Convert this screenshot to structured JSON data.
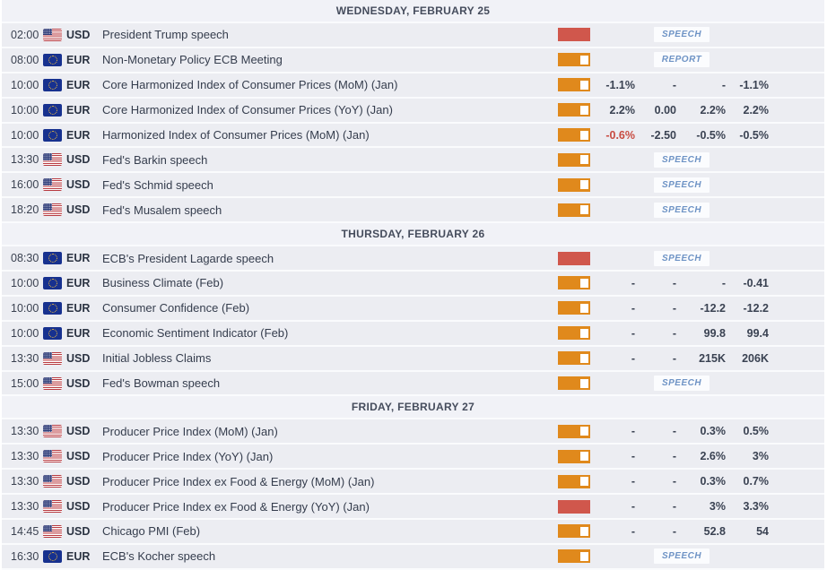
{
  "theme": {
    "accent_orange": "#e0891c",
    "impact_high_red": "#d0574c",
    "badge_text_blue": "#6e93c5",
    "negative_value_red": "#c84b41",
    "row_background": "#ecedf2",
    "header_background": "#f1f2f7"
  },
  "calendar": {
    "days": [
      {
        "label": "WEDNESDAY, FEBRUARY 25",
        "events": [
          {
            "time": "02:00",
            "currency": "USD",
            "flag": "us-flag-icon",
            "name": "President Trump speech",
            "impact": "high",
            "badge": "SPEECH"
          },
          {
            "time": "08:00",
            "currency": "EUR",
            "flag": "eu-flag-icon",
            "name": "Non-Monetary Policy ECB Meeting",
            "impact": "medium",
            "badge": "REPORT"
          },
          {
            "time": "10:00",
            "currency": "EUR",
            "flag": "eu-flag-icon",
            "name": "Core Harmonized Index of Consumer Prices (MoM) (Jan)",
            "impact": "medium",
            "values": [
              "-1.1%",
              "-",
              "-",
              "-1.1%"
            ]
          },
          {
            "time": "10:00",
            "currency": "EUR",
            "flag": "eu-flag-icon",
            "name": "Core Harmonized Index of Consumer Prices (YoY) (Jan)",
            "impact": "medium",
            "values": [
              "2.2%",
              "0.00",
              "2.2%",
              "2.2%"
            ]
          },
          {
            "time": "10:00",
            "currency": "EUR",
            "flag": "eu-flag-icon",
            "name": "Harmonized Index of Consumer Prices (MoM) (Jan)",
            "impact": "medium",
            "values": [
              "-0.6%",
              "-2.50",
              "-0.5%",
              "-0.5%"
            ],
            "actual_red": true
          },
          {
            "time": "13:30",
            "currency": "USD",
            "flag": "us-flag-icon",
            "name": "Fed's Barkin speech",
            "impact": "medium",
            "badge": "SPEECH"
          },
          {
            "time": "16:00",
            "currency": "USD",
            "flag": "us-flag-icon",
            "name": "Fed's Schmid speech",
            "impact": "medium",
            "badge": "SPEECH"
          },
          {
            "time": "18:20",
            "currency": "USD",
            "flag": "us-flag-icon",
            "name": "Fed's Musalem speech",
            "impact": "medium",
            "badge": "SPEECH"
          }
        ]
      },
      {
        "label": "THURSDAY, FEBRUARY 26",
        "events": [
          {
            "time": "08:30",
            "currency": "EUR",
            "flag": "eu-flag-icon",
            "name": "ECB's President Lagarde speech",
            "impact": "high",
            "badge": "SPEECH"
          },
          {
            "time": "10:00",
            "currency": "EUR",
            "flag": "eu-flag-icon",
            "name": "Business Climate (Feb)",
            "impact": "medium",
            "values": [
              "-",
              "-",
              "-",
              "-0.41"
            ]
          },
          {
            "time": "10:00",
            "currency": "EUR",
            "flag": "eu-flag-icon",
            "name": "Consumer Confidence (Feb)",
            "impact": "medium",
            "values": [
              "-",
              "-",
              "-12.2",
              "-12.2"
            ]
          },
          {
            "time": "10:00",
            "currency": "EUR",
            "flag": "eu-flag-icon",
            "name": "Economic Sentiment Indicator (Feb)",
            "impact": "medium",
            "values": [
              "-",
              "-",
              "99.8",
              "99.4"
            ]
          },
          {
            "time": "13:30",
            "currency": "USD",
            "flag": "us-flag-icon",
            "name": "Initial Jobless Claims",
            "impact": "medium",
            "values": [
              "-",
              "-",
              "215K",
              "206K"
            ]
          },
          {
            "time": "15:00",
            "currency": "USD",
            "flag": "us-flag-icon",
            "name": "Fed's Bowman speech",
            "impact": "medium",
            "badge": "SPEECH"
          }
        ]
      },
      {
        "label": "FRIDAY, FEBRUARY 27",
        "events": [
          {
            "time": "13:30",
            "currency": "USD",
            "flag": "us-flag-icon",
            "name": "Producer Price Index (MoM) (Jan)",
            "impact": "medium",
            "values": [
              "-",
              "-",
              "0.3%",
              "0.5%"
            ]
          },
          {
            "time": "13:30",
            "currency": "USD",
            "flag": "us-flag-icon",
            "name": "Producer Price Index (YoY) (Jan)",
            "impact": "medium",
            "values": [
              "-",
              "-",
              "2.6%",
              "3%"
            ]
          },
          {
            "time": "13:30",
            "currency": "USD",
            "flag": "us-flag-icon",
            "name": "Producer Price Index ex Food & Energy (MoM) (Jan)",
            "impact": "medium",
            "values": [
              "-",
              "-",
              "0.3%",
              "0.7%"
            ]
          },
          {
            "time": "13:30",
            "currency": "USD",
            "flag": "us-flag-icon",
            "name": "Producer Price Index ex Food & Energy (YoY) (Jan)",
            "impact": "high",
            "values": [
              "-",
              "-",
              "3%",
              "3.3%"
            ]
          },
          {
            "time": "14:45",
            "currency": "USD",
            "flag": "us-flag-icon",
            "name": "Chicago PMI (Feb)",
            "impact": "medium",
            "values": [
              "-",
              "-",
              "52.8",
              "54"
            ]
          },
          {
            "time": "16:30",
            "currency": "EUR",
            "flag": "eu-flag-icon",
            "name": "ECB's Kocher speech",
            "impact": "medium",
            "badge": "SPEECH"
          }
        ]
      }
    ]
  }
}
